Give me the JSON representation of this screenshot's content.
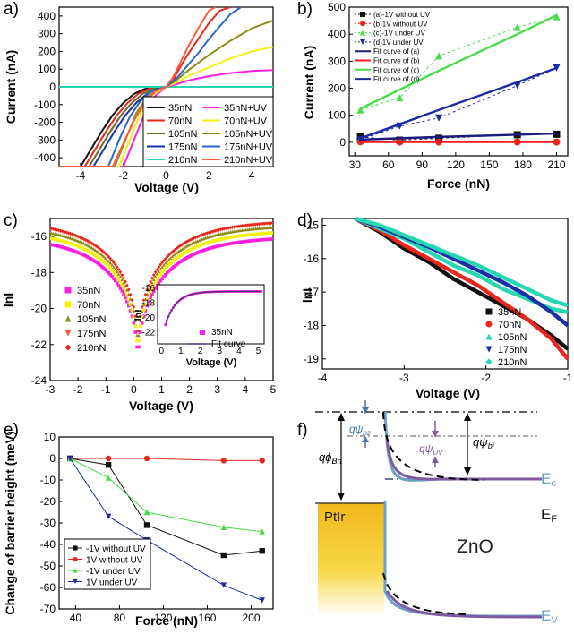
{
  "colors": {
    "c35": "#111111",
    "c70": "#e8261f",
    "c105": "#6c6c1c",
    "c175": "#1a2fa8",
    "c210": "#25d8b2",
    "uv35": "#ff1fe0",
    "uv70": "#f2f20e",
    "uv105": "#8d8a15",
    "uv175": "#2d66c7",
    "uv210": "#ff5a3c",
    "fitA": "#1b1b80",
    "fitB": "#ff1a1a",
    "fitC": "#44dd44",
    "fitD": "#1b2ba6",
    "ecLine": "#7f5aa3",
    "zno": "#6fa0c2",
    "ptBand": "#f2c41a"
  },
  "chart_data": [
    {
      "panel": "a)",
      "type": "line",
      "xlabel": "Voltage (V)",
      "ylabel": "Current (nA)",
      "xlim": [
        -5,
        5
      ],
      "ylim": [
        -450,
        450
      ],
      "xticks": [
        "-4",
        "-2",
        "0",
        "2",
        "4"
      ],
      "yticks": [
        "-400",
        "-300",
        "-200",
        "-100",
        "0",
        "100",
        "200",
        "300",
        "400"
      ],
      "legend": [
        [
          "35nN",
          "35nN+UV"
        ],
        [
          "70nN",
          "70nN+UV"
        ],
        [
          "105nN",
          "105nN+UV"
        ],
        [
          "175nN",
          "175nN+UV"
        ],
        [
          "210nN",
          "210nN+UV"
        ]
      ],
      "legend_position": "bottom-right",
      "series": [
        {
          "name": "35nN",
          "color": "c35",
          "x": [
            -5,
            -4,
            -3.5,
            -3,
            -2.5,
            -2,
            -1.5,
            -1,
            -0.5,
            0,
            0.5,
            1,
            2,
            3,
            4,
            5
          ],
          "y": [
            -450,
            -450,
            -350,
            -250,
            -160,
            -90,
            -40,
            -12,
            -2,
            0,
            0,
            0,
            0,
            0,
            0,
            0
          ]
        },
        {
          "name": "70nN",
          "color": "c70",
          "x": [
            -5,
            -3.8,
            -3.3,
            -2.8,
            -2.3,
            -1.8,
            -1.3,
            -0.8,
            -0.3,
            0,
            0.3,
            0.6,
            1,
            1.5,
            2,
            2.5,
            3
          ],
          "y": [
            -450,
            -450,
            -350,
            -250,
            -160,
            -90,
            -40,
            -10,
            -1,
            0,
            30,
            100,
            180,
            270,
            360,
            430,
            450
          ]
        },
        {
          "name": "105nN",
          "color": "c105",
          "x": [
            -5,
            -3.6,
            -3.1,
            -2.6,
            -2.1,
            -1.6,
            -1.1,
            -0.6,
            0,
            5
          ],
          "y": [
            -450,
            -450,
            -350,
            -250,
            -160,
            -90,
            -40,
            -10,
            0,
            0
          ]
        },
        {
          "name": "175nN",
          "color": "c175",
          "x": [
            -5,
            -3.4,
            -2.9,
            -2.4,
            -1.9,
            -1.4,
            -0.9,
            -0.4,
            0,
            5
          ],
          "y": [
            -450,
            -450,
            -350,
            -250,
            -160,
            -90,
            -40,
            -10,
            0,
            0
          ]
        },
        {
          "name": "210nN",
          "color": "c210",
          "x": [
            -5,
            5
          ],
          "y": [
            0,
            0
          ]
        },
        {
          "name": "35nN+UV",
          "color": "uv35",
          "x": [
            -5,
            -2,
            -1.5,
            -1,
            -0.5,
            0,
            0.5,
            1,
            2,
            3,
            4,
            5
          ],
          "y": [
            -450,
            -450,
            -300,
            -150,
            -50,
            0,
            15,
            35,
            60,
            78,
            90,
            95
          ]
        },
        {
          "name": "70nN+UV",
          "color": "uv70",
          "x": [
            -5,
            -2.2,
            -1.7,
            -1.2,
            -0.7,
            0,
            0.5,
            1,
            2,
            3,
            4,
            5
          ],
          "y": [
            -450,
            -450,
            -300,
            -150,
            -50,
            0,
            25,
            60,
            110,
            160,
            200,
            225
          ]
        },
        {
          "name": "105nN+UV",
          "color": "uv105",
          "x": [
            -5,
            -2.4,
            -1.9,
            -1.4,
            -0.9,
            -0.4,
            0,
            0.5,
            1,
            2,
            3,
            4,
            5
          ],
          "y": [
            -450,
            -450,
            -300,
            -150,
            -60,
            -15,
            0,
            40,
            90,
            180,
            260,
            330,
            375
          ]
        },
        {
          "name": "175nN+UV",
          "color": "uv175",
          "x": [
            -5,
            -2.7,
            -2.2,
            -1.7,
            -1.2,
            -0.7,
            0,
            0.5,
            1,
            1.5,
            2,
            2.5,
            3,
            3.5
          ],
          "y": [
            -450,
            -450,
            -300,
            -170,
            -80,
            -25,
            0,
            50,
            120,
            190,
            270,
            340,
            410,
            450
          ]
        },
        {
          "name": "210nN+UV",
          "color": "uv210",
          "x": [
            -5,
            -2.5,
            -2,
            -1.5,
            -1,
            -0.5,
            0,
            0.3,
            0.6,
            1,
            1.5,
            2,
            2.3
          ],
          "y": [
            -450,
            -450,
            -320,
            -190,
            -90,
            -25,
            0,
            50,
            120,
            220,
            330,
            430,
            450
          ]
        }
      ]
    },
    {
      "panel": "b)",
      "type": "line",
      "xlabel": "Force (nN)",
      "ylabel": "Current (nA)",
      "xlim": [
        25,
        220
      ],
      "ylim": [
        -50,
        500
      ],
      "xticks": [
        "30",
        "60",
        "90",
        "120",
        "150",
        "180",
        "210"
      ],
      "yticks": [
        "0",
        "100",
        "200",
        "300",
        "400",
        "500"
      ],
      "legend": [
        "(a)-1V without UV",
        "(b)1V without UV",
        "(c)-1V under UV",
        "(d)1V under UV",
        "Fit curve of (a)",
        "Fit curve of (b)",
        "Fit curve of (c)",
        "Fit curve of (d)"
      ],
      "legend_position": "top-left",
      "x": [
        35,
        70,
        105,
        175,
        210
      ],
      "series": [
        {
          "name": "(a)-1V without UV",
          "marker": "square",
          "color": "c35",
          "values": [
            20,
            8,
            15,
            28,
            30
          ]
        },
        {
          "name": "(b)1V without UV",
          "marker": "circle",
          "color": "c70",
          "values": [
            2,
            1,
            1,
            1,
            1
          ]
        },
        {
          "name": "(c)-1V under UV",
          "marker": "triangle-up",
          "color": "fitC",
          "values": [
            120,
            165,
            320,
            425,
            465
          ]
        },
        {
          "name": "(d)1V under UV",
          "marker": "triangle-down",
          "color": "fitD",
          "values": [
            10,
            60,
            90,
            210,
            275
          ]
        },
        {
          "name": "Fit curve of (a)",
          "fit": true,
          "color": "fitA",
          "values": [
            10,
            15,
            20,
            28,
            33
          ]
        },
        {
          "name": "Fit curve of (b)",
          "fit": true,
          "color": "fitB",
          "values": [
            1,
            1,
            1,
            1,
            1
          ]
        },
        {
          "name": "Fit curve of (c)",
          "fit": true,
          "color": "fitC",
          "values": [
            125,
            195,
            265,
            400,
            470
          ]
        },
        {
          "name": "Fit curve of (d)",
          "fit": true,
          "color": "fitD",
          "values": [
            15,
            67,
            120,
            222,
            275
          ]
        }
      ]
    },
    {
      "panel": "c)",
      "type": "scatter",
      "xlabel": "Voltage (V)",
      "ylabel": "lnI",
      "xlim": [
        -3,
        5
      ],
      "ylim": [
        -24,
        -15
      ],
      "xticks": [
        "-3",
        "-2",
        "-1",
        "0",
        "1",
        "2",
        "3",
        "4",
        "5"
      ],
      "yticks": [
        "-24",
        "-22",
        "-20",
        "-18",
        "-16"
      ],
      "legend": [
        "35nN",
        "70nN",
        "105nN",
        "175nN",
        "210nN"
      ],
      "legend_position": "bottom-left",
      "series": [
        {
          "name": "35nN",
          "marker": "square",
          "color": "uv35",
          "offset": 0.9
        },
        {
          "name": "70nN",
          "marker": "square",
          "color": "uv70",
          "offset": 0.55
        },
        {
          "name": "105nN",
          "marker": "triangle-up",
          "color": "uv105",
          "offset": 0.25
        },
        {
          "name": "175nN",
          "marker": "triangle-down",
          "color": "uv210",
          "offset": 0.05
        },
        {
          "name": "210nN",
          "marker": "diamond",
          "color": "c70",
          "offset": 0.0
        }
      ],
      "inset": {
        "xlabel": "Voltage (V)",
        "ylabel": "lnI",
        "xlim": [
          -0.2,
          5.3
        ],
        "ylim": [
          -23.5,
          -15.5
        ],
        "xticks": [
          "0",
          "1",
          "2",
          "3",
          "4",
          "5"
        ],
        "yticks": [
          "-22",
          "-20",
          "-18",
          "-16"
        ],
        "legend": [
          "35nN",
          "Fit curve"
        ]
      }
    },
    {
      "panel": "d)",
      "type": "line",
      "xlabel": "Voltage (V)",
      "ylabel": "lnI",
      "xlim": [
        -4,
        -1
      ],
      "ylim": [
        -19.3,
        -14.8
      ],
      "xticks": [
        "-4",
        "-3",
        "-2",
        "-1"
      ],
      "yticks": [
        "-19",
        "-18",
        "-17",
        "-16",
        "-15"
      ],
      "legend": [
        "35nN",
        "70nN",
        "105nN",
        "175nN",
        "210nN"
      ],
      "legend_position": "bottom-right",
      "x": [
        -3.6,
        -3.3,
        -3.0,
        -2.7,
        -2.4,
        -2.1,
        -1.8,
        -1.5,
        -1.2,
        -1.0
      ],
      "series": [
        {
          "name": "35nN",
          "color": "c35",
          "values": [
            -14.8,
            -15.2,
            -15.7,
            -16.1,
            -16.6,
            -17.0,
            -17.4,
            -17.8,
            -18.3,
            -18.7
          ]
        },
        {
          "name": "70nN",
          "color": "c70",
          "values": [
            -14.8,
            -15.15,
            -15.6,
            -16.0,
            -16.4,
            -16.8,
            -17.3,
            -17.8,
            -18.4,
            -19.0
          ]
        },
        {
          "name": "105nN",
          "color": "c210",
          "values": [
            -14.8,
            -15.1,
            -15.4,
            -15.8,
            -16.2,
            -16.5,
            -16.9,
            -17.2,
            -17.5,
            -17.6
          ]
        },
        {
          "name": "175nN",
          "color": "c175",
          "values": [
            -14.8,
            -15.05,
            -15.35,
            -15.65,
            -16.0,
            -16.35,
            -16.7,
            -17.1,
            -17.6,
            -18.0
          ]
        },
        {
          "name": "210nN",
          "color": "c210",
          "values": [
            -14.8,
            -15.0,
            -15.3,
            -15.6,
            -15.9,
            -16.2,
            -16.55,
            -16.9,
            -17.25,
            -17.4
          ]
        }
      ]
    },
    {
      "panel": "e)",
      "type": "line",
      "xlabel": "Force (nN)",
      "ylabel": "Change of barrier height (meV)",
      "xlim": [
        25,
        220
      ],
      "ylim": [
        -70,
        10
      ],
      "xticks": [
        "40",
        "80",
        "120",
        "160",
        "200"
      ],
      "yticks": [
        "-70",
        "-60",
        "-50",
        "-40",
        "-30",
        "-20",
        "-10",
        "0",
        "10"
      ],
      "legend": [
        "-1V without UV",
        "1V without UV",
        "-1V under UV",
        "1V under UV"
      ],
      "legend_position": "bottom-left",
      "x": [
        35,
        70,
        105,
        175,
        210
      ],
      "series": [
        {
          "name": "-1V without UV",
          "marker": "square",
          "color": "c35",
          "values": [
            0,
            -3,
            -31,
            -45,
            -43
          ]
        },
        {
          "name": "1V without UV",
          "marker": "circle",
          "color": "c70",
          "values": [
            0,
            0,
            0,
            -1,
            -1
          ]
        },
        {
          "name": "-1V under UV",
          "marker": "triangle-up",
          "color": "fitC",
          "values": [
            0,
            -9,
            -25,
            -32,
            -34
          ]
        },
        {
          "name": "1V under UV",
          "marker": "triangle-down",
          "color": "fitD",
          "values": [
            0,
            -27,
            -38,
            -59,
            -66
          ]
        }
      ]
    },
    {
      "panel": "f)",
      "type": "diagram",
      "labels": {
        "metal": "PtIr",
        "semi": "ZnO",
        "ec": "E",
        "ec_sub": "c",
        "ef": "E",
        "ef_sub": "F",
        "ev": "E",
        "ev_sub": "V",
        "phi_bn": "qϕ",
        "phi_bn_sub": "Bn",
        "psi_pz": "qψ",
        "psi_pz_sub": "pz",
        "psi_uv": "qψ",
        "psi_uv_sub": "UV",
        "psi_bi": "qψ",
        "psi_bi_sub": "bi"
      }
    }
  ]
}
